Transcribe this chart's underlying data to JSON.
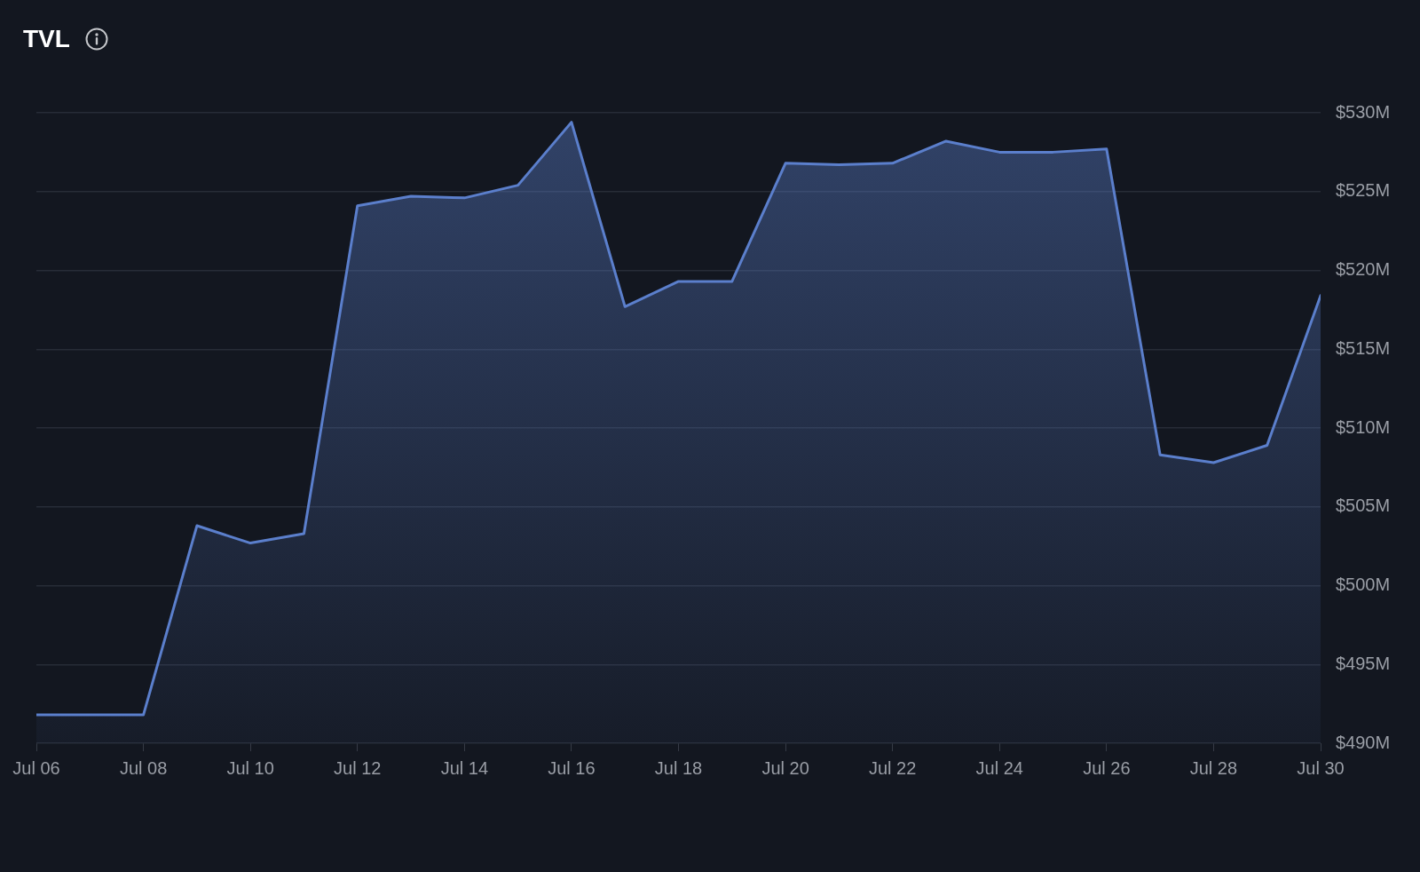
{
  "chart_data": {
    "type": "area",
    "title": "TVL",
    "x": [
      "--07-06",
      "--07-07",
      "--07-08",
      "--07-09",
      "--07-10",
      "--07-11",
      "--07-12",
      "--07-13",
      "--07-14",
      "--07-15",
      "--07-16",
      "--07-17",
      "--07-18",
      "--07-19",
      "--07-20",
      "--07-21",
      "--07-22",
      "--07-23",
      "--07-24",
      "--07-25",
      "--07-26",
      "--07-27",
      "--07-28",
      "--07-29",
      "--07-30"
    ],
    "values": [
      491.8,
      491.8,
      491.8,
      503.8,
      502.7,
      503.3,
      524.1,
      524.7,
      524.6,
      525.4,
      529.4,
      517.7,
      519.3,
      519.3,
      526.8,
      526.7,
      526.8,
      528.2,
      527.5,
      527.5,
      527.7,
      508.3,
      507.8,
      508.9,
      518.4
    ],
    "color": "#5b7fcc",
    "xlim": [
      "--07-06",
      "--07-30"
    ],
    "xticks": [
      {
        "value": "--07-06",
        "label": "Jul 06"
      },
      {
        "value": "--07-08",
        "label": "Jul 08"
      },
      {
        "value": "--07-10",
        "label": "Jul 10"
      },
      {
        "value": "--07-12",
        "label": "Jul 12"
      },
      {
        "value": "--07-14",
        "label": "Jul 14"
      },
      {
        "value": "--07-16",
        "label": "Jul 16"
      },
      {
        "value": "--07-18",
        "label": "Jul 18"
      },
      {
        "value": "--07-20",
        "label": "Jul 20"
      },
      {
        "value": "--07-22",
        "label": "Jul 22"
      },
      {
        "value": "--07-24",
        "label": "Jul 24"
      },
      {
        "value": "--07-26",
        "label": "Jul 26"
      },
      {
        "value": "--07-28",
        "label": "Jul 28"
      },
      {
        "value": "--07-30",
        "label": "Jul 30"
      }
    ],
    "ylim": [
      490,
      530
    ],
    "yticks": [
      {
        "value": 490,
        "label": "$490M"
      },
      {
        "value": 495,
        "label": "$495M"
      },
      {
        "value": 500,
        "label": "$500M"
      },
      {
        "value": 505,
        "label": "$505M"
      },
      {
        "value": 510,
        "label": "$510M"
      },
      {
        "value": 515,
        "label": "$515M"
      },
      {
        "value": 520,
        "label": "$520M"
      },
      {
        "value": 525,
        "label": "$525M"
      },
      {
        "value": 530,
        "label": "$530M"
      }
    ],
    "grid": "y"
  }
}
